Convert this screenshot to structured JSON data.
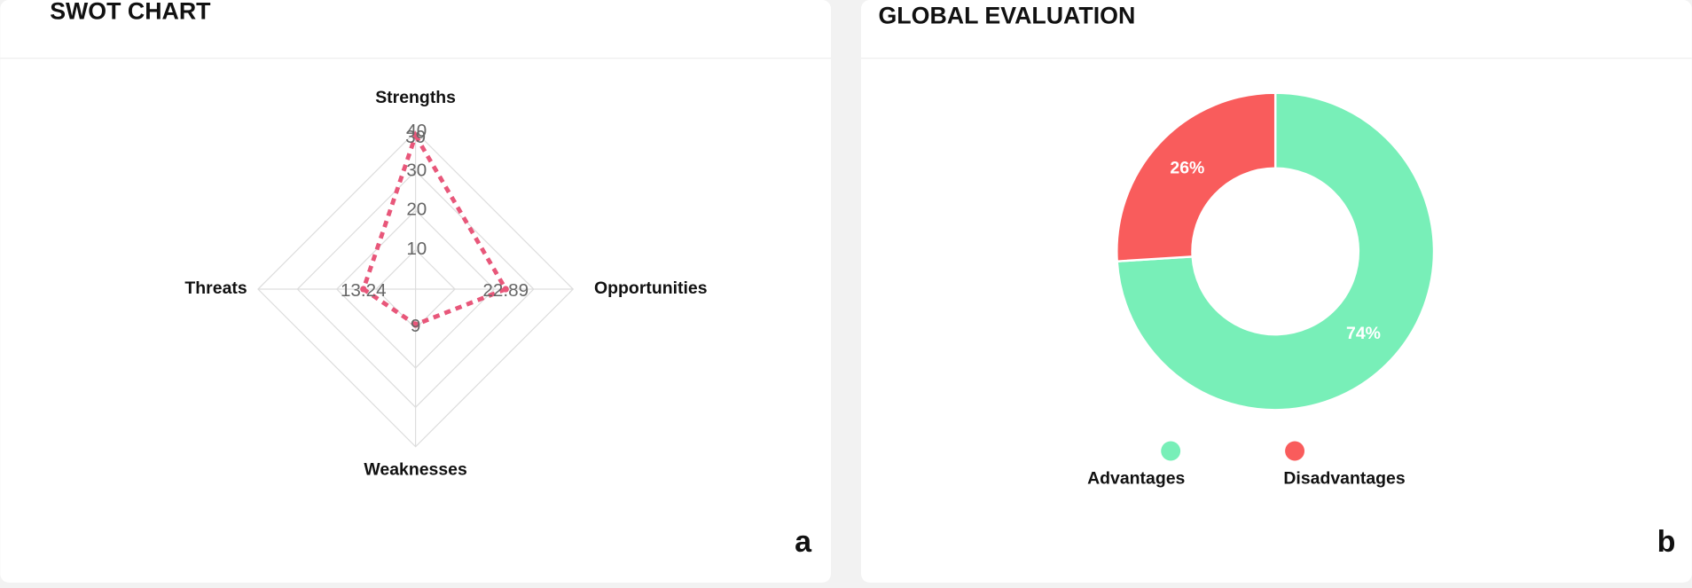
{
  "chart_data": [
    {
      "type": "radar",
      "title": "SWOT CHART",
      "panel_label": "a",
      "categories": [
        "Strengths",
        "Opportunities",
        "Weaknesses",
        "Threats"
      ],
      "series": [
        {
          "color": "#e8577a",
          "values": [
            39,
            22.89,
            9,
            13.24
          ]
        }
      ],
      "rlim": [
        0,
        40
      ],
      "rticks": [
        10,
        20,
        30,
        40
      ],
      "grid": true,
      "line_style": "dashed"
    },
    {
      "type": "pie",
      "title": "GLOBAL EVALUATION",
      "panel_label": "b",
      "donut": true,
      "categories": [
        "Advantages",
        "Disadvantages"
      ],
      "values": [
        74,
        26
      ],
      "value_labels": [
        "74%",
        "26%"
      ],
      "colors": [
        "#78efb8",
        "#f95c5c"
      ],
      "legend": "bottom"
    }
  ]
}
